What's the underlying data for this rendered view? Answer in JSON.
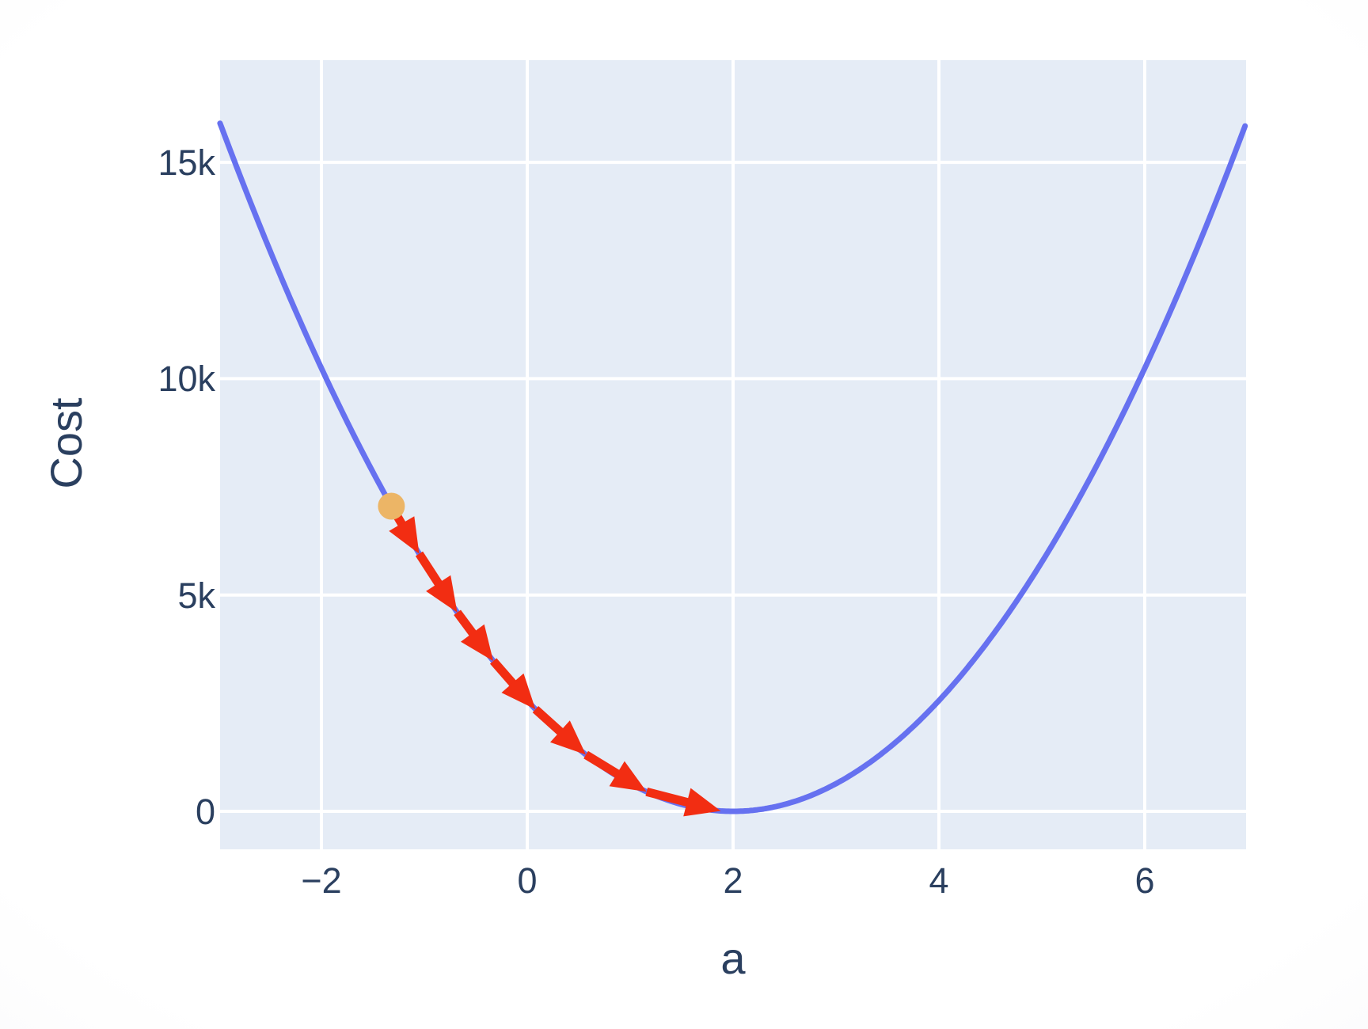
{
  "chart_data": {
    "type": "line",
    "title": "",
    "xlabel": "a",
    "ylabel": "Cost",
    "grid": true,
    "legend": false,
    "x_range": [
      -3,
      7
    ],
    "y_range": [
      -880,
      17350
    ],
    "x_ticks": [
      {
        "v": -2,
        "label": "−2"
      },
      {
        "v": 0,
        "label": "0"
      },
      {
        "v": 2,
        "label": "2"
      },
      {
        "v": 4,
        "label": "4"
      },
      {
        "v": 6,
        "label": "6"
      }
    ],
    "y_ticks": [
      {
        "v": 0,
        "label": "0"
      },
      {
        "v": 5000,
        "label": "5k"
      },
      {
        "v": 10000,
        "label": "10k"
      },
      {
        "v": 15000,
        "label": "15k"
      }
    ],
    "colors": {
      "plot_background": "#E5ECF6",
      "gridline": "#FFFFFF",
      "curve": "#6671F0",
      "arrow": "#F22D12",
      "start_point": "#ECB566",
      "text": "#2A3F5F"
    },
    "series": [
      {
        "name": "cost-curve",
        "shape": "parabola",
        "coefficient": 640,
        "vertex": {
          "a": 2,
          "cost": 0
        },
        "a_min": -2.985,
        "a_max": 6.985
      }
    ],
    "gradient_descent": {
      "description": "red arrows stepping down the cost curve from the orange start point to the minimum",
      "points": [
        {
          "a": -1.32,
          "cost": 7053
        },
        {
          "a": -1.05,
          "cost": 5954
        },
        {
          "a": -0.68,
          "cost": 4596
        },
        {
          "a": -0.33,
          "cost": 3475
        },
        {
          "a": 0.08,
          "cost": 2359
        },
        {
          "a": 0.57,
          "cost": 1308
        },
        {
          "a": 1.16,
          "cost": 452
        },
        {
          "a": 1.88,
          "cost": 9
        }
      ]
    }
  }
}
